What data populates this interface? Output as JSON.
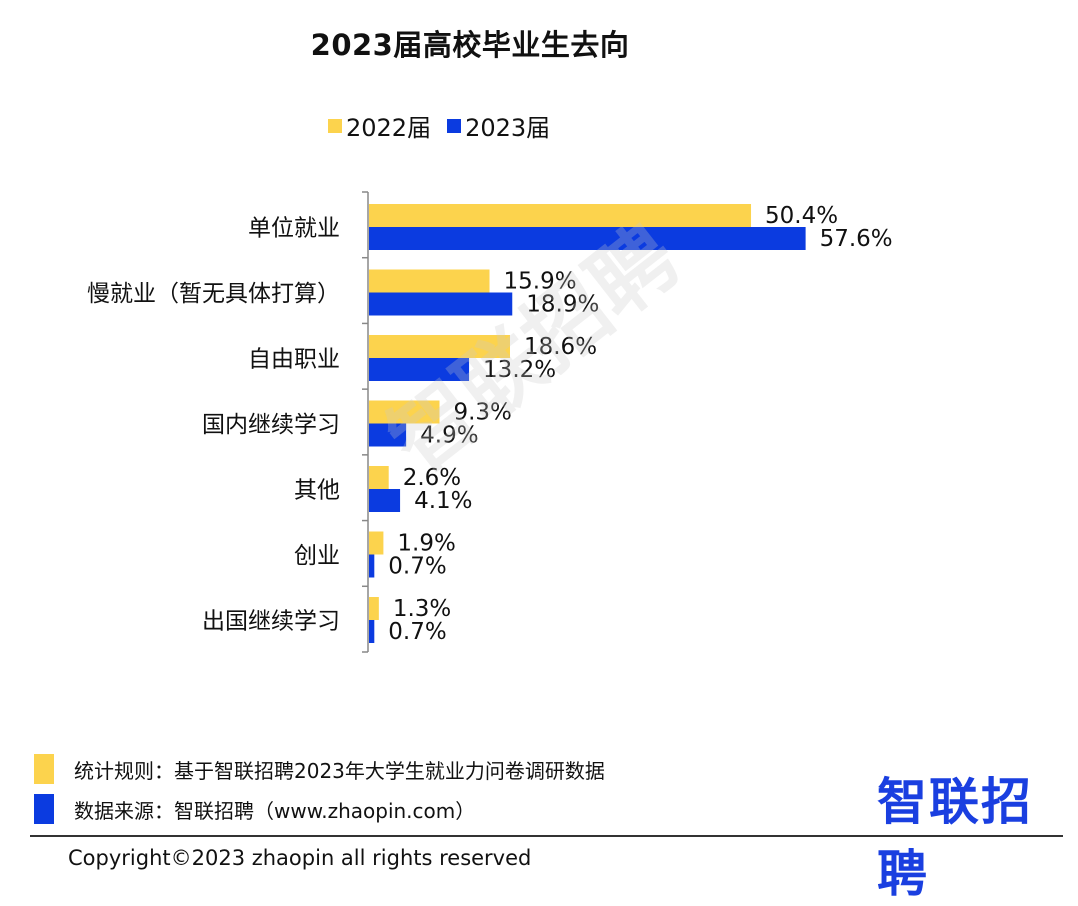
{
  "chart_data": {
    "type": "bar",
    "orientation": "horizontal",
    "title": "2023届高校毕业生去向",
    "categories": [
      "单位就业",
      "慢就业（暂无具体打算）",
      "自由职业",
      "国内继续学习",
      "其他",
      "创业",
      "出国继续学习"
    ],
    "series": [
      {
        "name": "2022届",
        "color": "#FCD34D",
        "values": [
          50.4,
          15.9,
          18.6,
          9.3,
          2.6,
          1.9,
          1.3
        ]
      },
      {
        "name": "2023届",
        "color": "#0B3BE0",
        "values": [
          57.6,
          18.9,
          13.2,
          4.9,
          4.1,
          0.7,
          0.7
        ]
      }
    ],
    "value_labels": [
      [
        "50.4%",
        "15.9%",
        "18.6%",
        "9.3%",
        "2.6%",
        "1.9%",
        "1.3%"
      ],
      [
        "57.6%",
        "18.9%",
        "13.2%",
        "4.9%",
        "4.1%",
        "0.7%",
        "0.7%"
      ]
    ],
    "unit": "%",
    "legend_position": "top",
    "grid": false
  },
  "watermark": "智联招聘",
  "footer": {
    "note_rule": "统计规则：基于智联招聘2023年大学生就业力问卷调研数据",
    "note_source": "数据来源：智联招聘（www.zhaopin.com）",
    "brand": "智联招聘",
    "copyright": "Copyright©2023 zhaopin all rights reserved"
  },
  "colors": {
    "series_2022": "#FCD34D",
    "series_2023": "#0B3BE0",
    "brand_blue": "#1A3FE0",
    "brand_yellow": "#F5C518"
  }
}
